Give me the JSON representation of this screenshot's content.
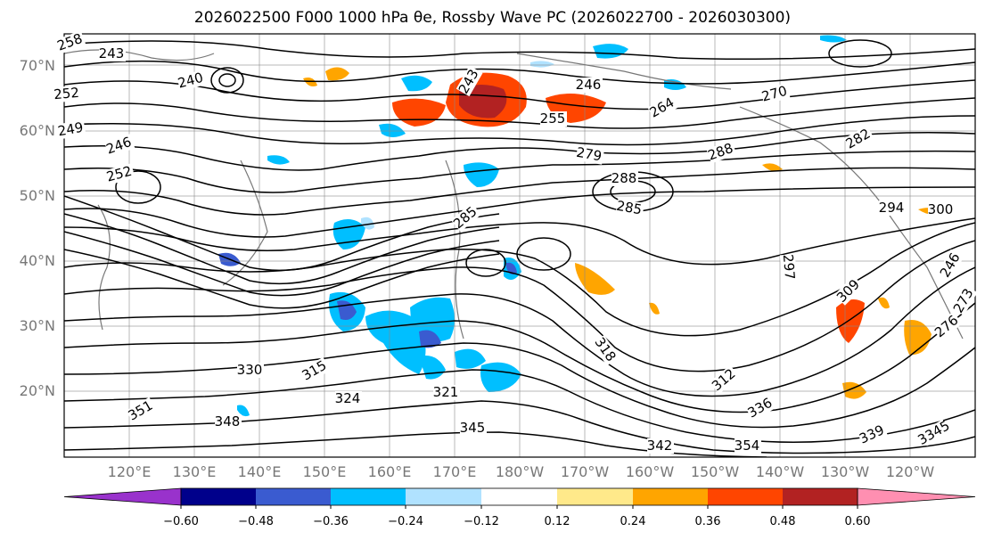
{
  "title": "2026022500 F000 1000 hPa θe, Rossby Wave PC (2026022700 - 2026030300)",
  "latitude_labels": [
    "70°N",
    "60°N",
    "50°N",
    "40°N",
    "30°N",
    "20°N"
  ],
  "longitude_labels": [
    "120°E",
    "130°E",
    "140°E",
    "150°E",
    "160°E",
    "170°E",
    "180°W",
    "170°W",
    "160°W",
    "150°W",
    "140°W",
    "130°W",
    "120°W"
  ],
  "colorbar": {
    "ticks": [
      "−0.60",
      "−0.48",
      "−0.36",
      "−0.24",
      "−0.12",
      "0.12",
      "0.24",
      "0.36",
      "0.48",
      "0.60"
    ],
    "colors": [
      "#9932cc",
      "#00008b",
      "#3a5bd0",
      "#00bfff",
      "#b0e2ff",
      "#ffffff",
      "#ffe98a",
      "#ffa500",
      "#ff4500",
      "#b22222",
      "#ff8fb1"
    ]
  },
  "contour_labels": [
    "258",
    "252",
    "249",
    "246",
    "252",
    "243",
    "246",
    "255",
    "264",
    "270",
    "279",
    "288",
    "285",
    "288",
    "297",
    "294",
    "300",
    "285",
    "309",
    "318",
    "315",
    "312",
    "330",
    "324",
    "321",
    "336",
    "345",
    "351",
    "348",
    "342",
    "339",
    "3345",
    "354",
    "282",
    "276",
    "273",
    "246",
    "240",
    "243"
  ],
  "map_colors": {
    "contour": "#000000",
    "grid": "#888888",
    "coast": "#777777"
  }
}
